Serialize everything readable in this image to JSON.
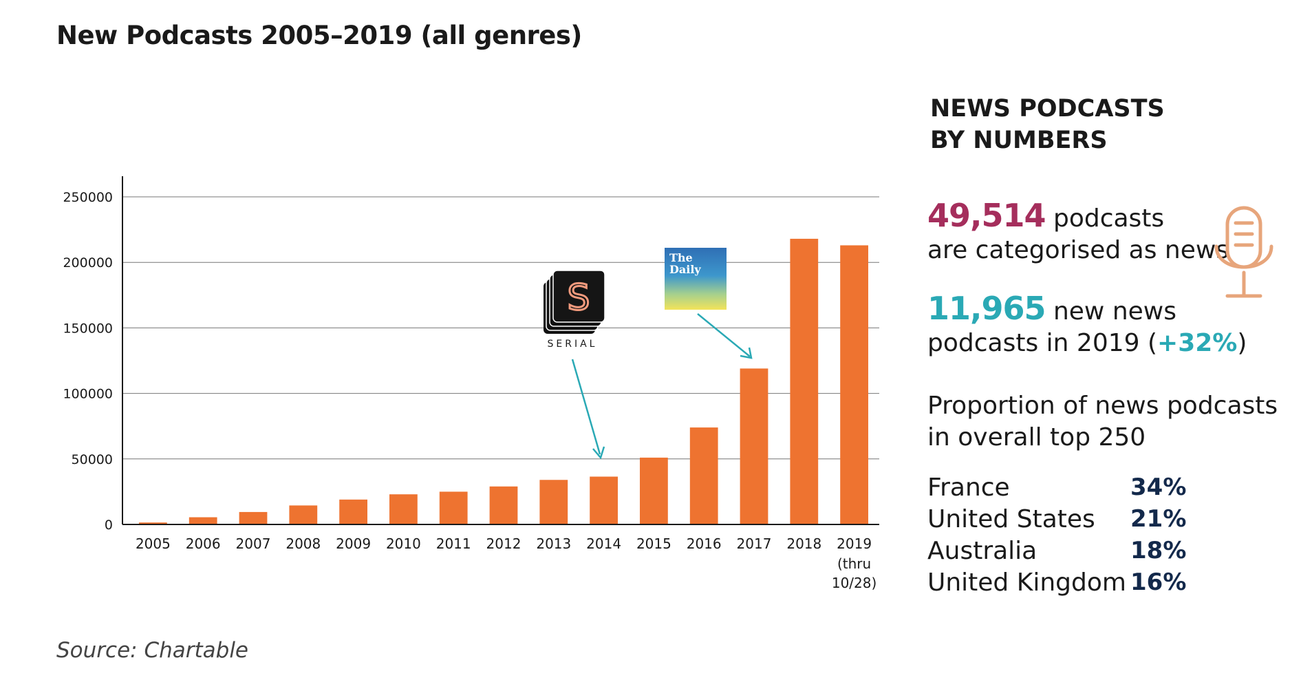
{
  "title": "New Podcasts 2005–2019 (all genres)",
  "source": "Source: Chartable",
  "colors": {
    "bar": "#ee7330",
    "arrow": "#2aa9b5",
    "accent_magenta": "#a52e5c",
    "accent_teal": "#2aa9b5",
    "navy": "#13294b",
    "mic": "#e7a57b"
  },
  "chart_data": {
    "type": "bar",
    "categories": [
      "2005",
      "2006",
      "2007",
      "2008",
      "2009",
      "2010",
      "2011",
      "2012",
      "2013",
      "2014",
      "2015",
      "2016",
      "2017",
      "2018",
      "2019"
    ],
    "category_sublabels": [
      "",
      "",
      "",
      "",
      "",
      "",
      "",
      "",
      "",
      "",
      "",
      "",
      "",
      "",
      "(thru\n10/28)"
    ],
    "values": [
      1500,
      5500,
      9500,
      14500,
      19000,
      23000,
      25000,
      29000,
      34000,
      36500,
      51000,
      74000,
      119000,
      218000,
      213000
    ],
    "yticks": [
      "0",
      "50000",
      "100000",
      "150000",
      "200000",
      "250000"
    ],
    "ytick_values": [
      0,
      50000,
      100000,
      150000,
      200000,
      250000
    ],
    "ylim": [
      0,
      250000
    ],
    "grid": true,
    "annotations": [
      {
        "label": "SERIAL",
        "logo": "serial-logo",
        "points_to": "2014"
      },
      {
        "label": "The Daily",
        "logo": "the-daily-logo",
        "points_to": "2017"
      }
    ]
  },
  "panel": {
    "title": "NEWS PODCASTS BY NUMBERS",
    "stat1_number": "49,514",
    "stat1_text_a": "podcasts",
    "stat1_text_b": "are categorised as news",
    "stat2_number": "11,965",
    "stat2_text_a": "new news",
    "stat2_text_b": "podcasts in 2019 (",
    "stat2_pct": "+32%",
    "stat2_close": ")",
    "proportion_heading": "Proportion of news podcasts in overall top 250",
    "icon": "microphone-icon",
    "countries": [
      {
        "name": "France",
        "pct": "34%"
      },
      {
        "name": "United States",
        "pct": "21%"
      },
      {
        "name": "Australia",
        "pct": "18%"
      },
      {
        "name": "United Kingdom",
        "pct": "16%"
      }
    ]
  }
}
